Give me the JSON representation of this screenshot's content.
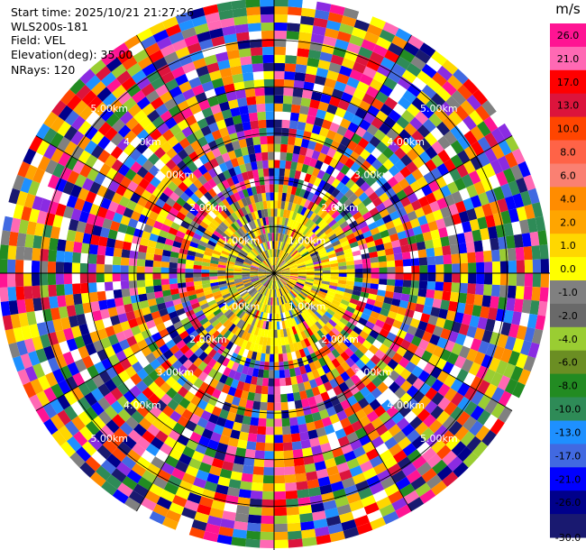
{
  "header": {
    "start_time": "Start time: 2025/10/21 21:27:26",
    "instrument": "WLS200s-181",
    "field": "Field: VEL",
    "elevation": "Elevation(deg): 35.00",
    "nrays": "NRays: 120"
  },
  "chart_data": {
    "type": "heatmap",
    "projection": "polar",
    "title": "",
    "n_rays": 120,
    "n_gates": 34,
    "max_range_km": 5.9,
    "range_rings_km": [
      1,
      2,
      3,
      4,
      5
    ],
    "ring_labels": [
      "1.00km",
      "2.00km",
      "3.00km",
      "4.00km",
      "5.00km"
    ],
    "label_bearings_deg": [
      315,
      45,
      135,
      225
    ],
    "colorbar": {
      "unit": "m/s",
      "ticks": [
        "26.0",
        "21.0",
        "17.0",
        "13.0",
        "10.0",
        "8.0",
        "6.0",
        "4.0",
        "2.0",
        "1.0",
        "0.0",
        "-1.0",
        "-2.0",
        "-4.0",
        "-6.0",
        "-8.0",
        "-10.0",
        "-13.0",
        "-17.0",
        "-21.0",
        "-26.0",
        "-30.0"
      ],
      "colors": [
        "#ff1493",
        "#ff69b4",
        "#ff0000",
        "#dc143c",
        "#ff4500",
        "#ff6347",
        "#fa8072",
        "#ff8c00",
        "#ffa500",
        "#ffd700",
        "#ffff00",
        "#808080",
        "#696969",
        "#9acd32",
        "#6b8e23",
        "#228b22",
        "#2e8b57",
        "#1e90ff",
        "#4169e1",
        "#0000ff",
        "#00008b",
        "#191970"
      ]
    },
    "noise_palette": [
      "#ff1493",
      "#ff69b4",
      "#ff0000",
      "#dc143c",
      "#ff4500",
      "#ff8c00",
      "#ffa500",
      "#ffd700",
      "#ffff00",
      "#9acd32",
      "#228b22",
      "#2e8b57",
      "#1e90ff",
      "#4169e1",
      "#0000ff",
      "#00008b",
      "#191970",
      "#8a2be2",
      "#808080",
      "#ffffff"
    ],
    "core_palette": [
      "#ffff00",
      "#ffd700",
      "#9acd32",
      "#808080",
      "#696969",
      "#ffa500"
    ]
  }
}
